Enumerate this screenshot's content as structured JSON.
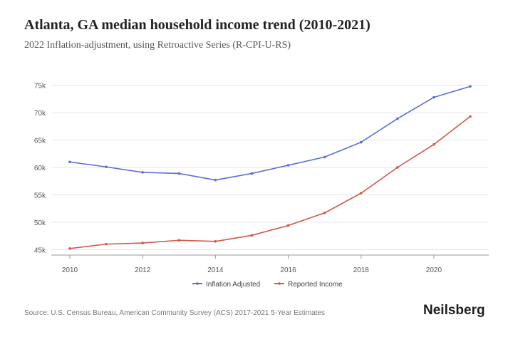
{
  "chart_data": {
    "type": "line",
    "title": "Atlanta, GA median household income trend (2010-2021)",
    "subtitle": "2022 Inflation-adjustment, using Retroactive Series (R-CPI-U-RS)",
    "xlabel": "",
    "ylabel": "",
    "x": [
      2010,
      2011,
      2012,
      2013,
      2014,
      2015,
      2016,
      2017,
      2018,
      2019,
      2020,
      2021
    ],
    "xticks": [
      "2010",
      "2012",
      "2014",
      "2016",
      "2018",
      "2020"
    ],
    "yticks": [
      "45k",
      "50k",
      "55k",
      "60k",
      "65k",
      "70k",
      "75k"
    ],
    "ytick_values": [
      45000,
      50000,
      55000,
      60000,
      65000,
      70000,
      75000
    ],
    "xlim": [
      2010,
      2021
    ],
    "ylim": [
      44000,
      76000
    ],
    "grid": true,
    "legend_position": "bottom-center",
    "series": [
      {
        "name": "Inflation Adjusted",
        "color": "#5b6fd6",
        "values": [
          61000,
          60100,
          59100,
          58900,
          57700,
          58900,
          60400,
          61900,
          64600,
          68900,
          72800,
          74800
        ]
      },
      {
        "name": "Reported Income",
        "color": "#d1584a",
        "values": [
          45200,
          46000,
          46200,
          46700,
          46500,
          47600,
          49400,
          51700,
          55300,
          60000,
          64200,
          69300
        ]
      }
    ]
  },
  "footer": {
    "source": "Source: U.S. Census Bureau, American Community Survey (ACS) 2017-2021 5-Year Estimates",
    "brand": "Neilsberg"
  }
}
